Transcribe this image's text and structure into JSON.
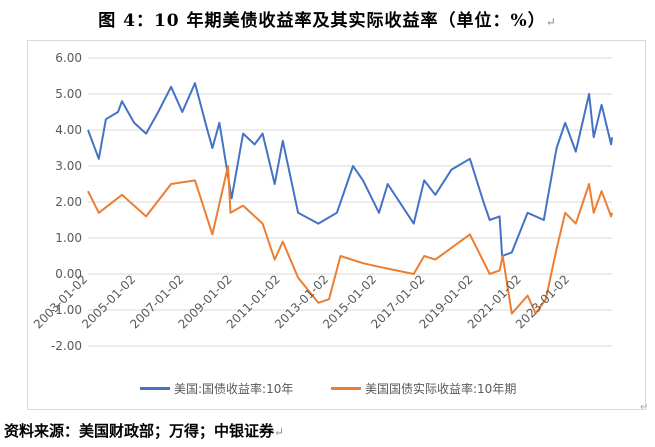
{
  "figure": {
    "title": "图 4：10 年期美债收益率及其实际收益率（单位：%）",
    "source": "资料来源：美国财政部；万得；中银证券",
    "para_mark": "↵"
  },
  "chart_data": {
    "type": "line",
    "ylim": [
      -2,
      6
    ],
    "yticks": [
      "6.00",
      "5.00",
      "4.00",
      "3.00",
      "2.00",
      "1.00",
      "0.00",
      "-1.00",
      "-2.00"
    ],
    "xlim": [
      "2003-01-02",
      "2024-09-30"
    ],
    "xticks": [
      "2003-01-02",
      "2005-01-02",
      "2007-01-02",
      "2009-01-02",
      "2011-01-02",
      "2013-01-02",
      "2015-01-02",
      "2017-01-02",
      "2019-01-02",
      "2021-01-02",
      "2023-01-02"
    ],
    "grid": true,
    "legend_position": "bottom",
    "series": [
      {
        "name": "美国:国债收益率:10年",
        "color": "#4472C4",
        "x": [
          "2003-01-02",
          "2003-06-15",
          "2003-10-01",
          "2004-04-01",
          "2004-06-01",
          "2004-12-01",
          "2005-06-01",
          "2005-12-01",
          "2006-06-15",
          "2006-12-01",
          "2007-06-12",
          "2007-12-01",
          "2008-03-01",
          "2008-06-15",
          "2008-12-18",
          "2009-06-10",
          "2009-12-01",
          "2010-04-01",
          "2010-10-01",
          "2011-02-01",
          "2011-09-22",
          "2012-07-24",
          "2013-05-01",
          "2013-12-31",
          "2014-06-01",
          "2015-01-30",
          "2015-06-10",
          "2016-07-08",
          "2016-12-15",
          "2017-06-01",
          "2018-02-01",
          "2018-11-08",
          "2019-06-01",
          "2019-09-03",
          "2020-02-01",
          "2020-03-09",
          "2020-08-04",
          "2021-03-31",
          "2021-12-01",
          "2022-06-14",
          "2022-10-21",
          "2023-04-01",
          "2023-10-19",
          "2023-12-27",
          "2024-04-25",
          "2024-09-16",
          "2024-09-30"
        ],
        "values": [
          4.0,
          3.2,
          4.3,
          4.5,
          4.8,
          4.2,
          3.9,
          4.5,
          5.2,
          4.5,
          5.3,
          4.1,
          3.5,
          4.2,
          2.1,
          3.9,
          3.6,
          3.9,
          2.5,
          3.7,
          1.7,
          1.4,
          1.7,
          3.0,
          2.6,
          1.7,
          2.5,
          1.4,
          2.6,
          2.2,
          2.9,
          3.2,
          2.0,
          1.5,
          1.6,
          0.5,
          0.6,
          1.7,
          1.5,
          3.5,
          4.2,
          3.4,
          5.0,
          3.8,
          4.7,
          3.6,
          3.8
        ]
      },
      {
        "name": "美国国债实际收益率:10年期",
        "color": "#ED7D31",
        "x": [
          "2003-01-02",
          "2003-06-15",
          "2004-06-01",
          "2005-06-01",
          "2006-06-15",
          "2007-06-12",
          "2008-03-01",
          "2008-10-24",
          "2008-12-01",
          "2009-06-10",
          "2010-04-01",
          "2010-10-01",
          "2011-02-01",
          "2011-09-22",
          "2012-07-24",
          "2013-01-01",
          "2013-06-25",
          "2014-06-01",
          "2015-01-30",
          "2016-07-08",
          "2016-12-15",
          "2017-06-01",
          "2018-11-08",
          "2019-09-03",
          "2020-02-01",
          "2020-03-18",
          "2020-08-04",
          "2021-03-31",
          "2021-08-01",
          "2022-01-01",
          "2022-06-14",
          "2022-10-21",
          "2023-04-01",
          "2023-10-19",
          "2023-12-27",
          "2024-04-25",
          "2024-09-16",
          "2024-09-30"
        ],
        "values": [
          2.3,
          1.7,
          2.2,
          1.6,
          2.5,
          2.6,
          1.1,
          3.0,
          1.7,
          1.9,
          1.4,
          0.4,
          0.9,
          -0.1,
          -0.8,
          -0.7,
          0.5,
          0.3,
          0.2,
          0.0,
          0.5,
          0.4,
          1.1,
          0.0,
          0.1,
          0.5,
          -1.1,
          -0.6,
          -1.1,
          -0.7,
          0.7,
          1.7,
          1.4,
          2.5,
          1.7,
          2.3,
          1.6,
          1.7
        ]
      }
    ]
  }
}
